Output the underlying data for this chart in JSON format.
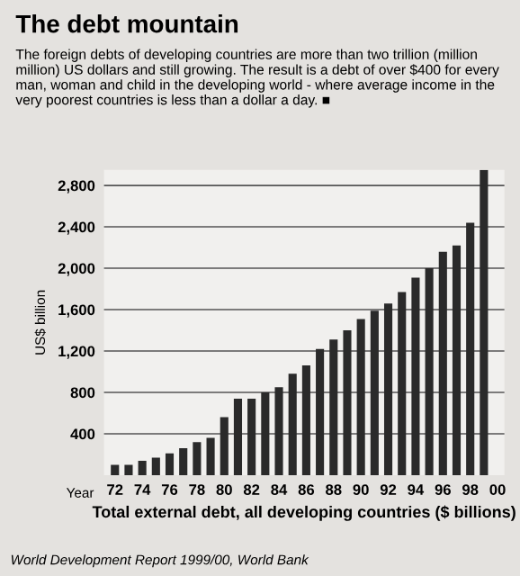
{
  "chart_data": {
    "type": "bar",
    "title": "The debt mountain",
    "subtitle": "The foreign debts of developing countries are more than two trillion (million million) US dollars and still growing. The result is a debt of over $400 for every man, woman and child in the developing world - where average income in the very poorest countries is less than a dollar a day. ■",
    "ylabel": "US$ billion",
    "xlabel": "Total external debt, all developing countries ($ billions)",
    "annotations": [
      "Year",
      "World Development Report 1999/00, World Bank"
    ],
    "categories": [
      "72",
      null,
      "74",
      null,
      "76",
      null,
      "78",
      null,
      "80",
      null,
      "82",
      null,
      "84",
      null,
      "86",
      null,
      "88",
      null,
      "90",
      null,
      "92",
      null,
      "94",
      null,
      "96",
      null,
      "98",
      null,
      "00"
    ],
    "values": [
      100,
      100,
      140,
      170,
      210,
      260,
      320,
      360,
      560,
      740,
      740,
      800,
      850,
      980,
      1060,
      1220,
      1310,
      1400,
      1510,
      1590,
      1660,
      1770,
      1910,
      2000,
      2160,
      2220,
      2440,
      2950,
      null
    ],
    "color": "#2a2a2a",
    "ylim": [
      0,
      2950
    ],
    "yticks": [
      {
        "value": 400,
        "label": "400"
      },
      {
        "value": 800,
        "label": "800"
      },
      {
        "value": 1200,
        "label": "1,200"
      },
      {
        "value": 1600,
        "label": "1,600"
      },
      {
        "value": 2000,
        "label": "2,000"
      },
      {
        "value": 2400,
        "label": "2,400"
      },
      {
        "value": 2800,
        "label": "2,800"
      }
    ],
    "grid": "y"
  }
}
